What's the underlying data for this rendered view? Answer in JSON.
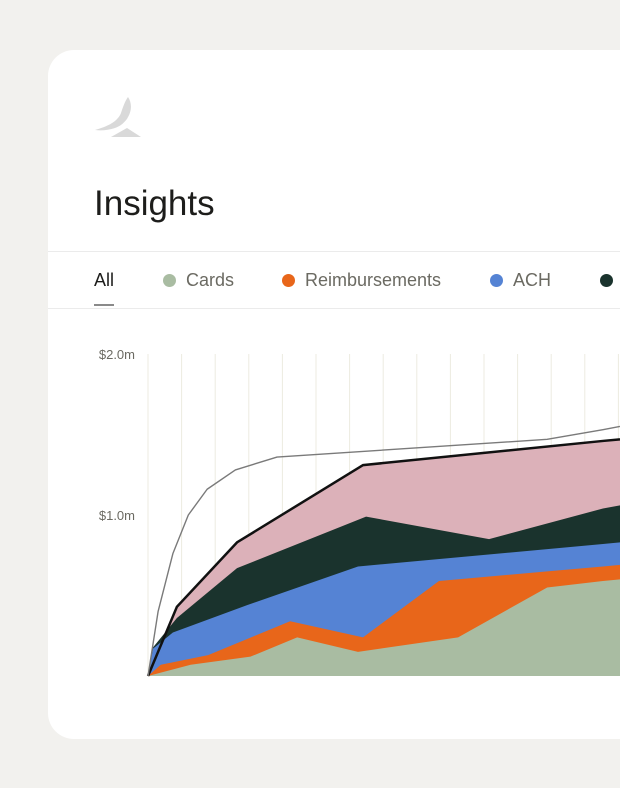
{
  "header": {
    "title": "Insights",
    "logo": "brand-logo"
  },
  "tabs": [
    {
      "label": "All",
      "active": true
    },
    {
      "label": "Cards",
      "color": "#a9bca2"
    },
    {
      "label": "Reimbursements",
      "color": "#e8661a"
    },
    {
      "label": "ACH",
      "color": "#5583d4"
    },
    {
      "label": "",
      "color": "#1a332d"
    }
  ],
  "chart_data": {
    "type": "area",
    "stacked": true,
    "title": "",
    "xlabel": "",
    "ylabel": "",
    "ylim": [
      0,
      2.0
    ],
    "y_ticks": [
      {
        "value": 2.0,
        "label": "$2.0m"
      },
      {
        "value": 1.0,
        "label": "$1.0m"
      }
    ],
    "grid": "vertical",
    "series_cumulative_top": [
      {
        "name": "Cards",
        "color": "#a9bca2",
        "points": [
          [
            0,
            0
          ],
          [
            1.27,
            0.07
          ],
          [
            3.05,
            0.12
          ],
          [
            4.44,
            0.24
          ],
          [
            6.25,
            0.15
          ],
          [
            9.23,
            0.24
          ],
          [
            11.88,
            0.55
          ],
          [
            13.54,
            0.59
          ],
          [
            14.05,
            0.6
          ]
        ]
      },
      {
        "name": "Reimbursements",
        "color": "#e8661a",
        "points": [
          [
            0,
            0
          ],
          [
            0.38,
            0.07
          ],
          [
            1.79,
            0.13
          ],
          [
            4.23,
            0.34
          ],
          [
            6.4,
            0.24
          ],
          [
            8.66,
            0.59
          ],
          [
            11.88,
            0.65
          ],
          [
            13.54,
            0.68
          ],
          [
            14.05,
            0.69
          ]
        ]
      },
      {
        "name": "ACH",
        "color": "#5583d4",
        "points": [
          [
            0,
            0
          ],
          [
            0.15,
            0.17
          ],
          [
            0.74,
            0.27
          ],
          [
            2.95,
            0.44
          ],
          [
            6.25,
            0.68
          ],
          [
            13.54,
            0.82
          ],
          [
            14.05,
            0.83
          ]
        ]
      },
      {
        "color": "#1a332d",
        "points": [
          [
            0,
            0
          ],
          [
            0.12,
            0.17
          ],
          [
            0.86,
            0.36
          ],
          [
            2.65,
            0.67
          ],
          [
            6.49,
            0.99
          ],
          [
            10.15,
            0.85
          ],
          [
            13.54,
            1.04
          ],
          [
            14.05,
            1.06
          ]
        ]
      },
      {
        "color": "#dcb1b9",
        "outline": "#111111",
        "points": [
          [
            0,
            0
          ],
          [
            0.86,
            0.43
          ],
          [
            2.65,
            0.83
          ],
          [
            6.4,
            1.31
          ],
          [
            13.54,
            1.46
          ],
          [
            14.05,
            1.47
          ]
        ]
      }
    ],
    "reference_line": {
      "color": "#7a7a7a",
      "points": [
        [
          0,
          0
        ],
        [
          0.3,
          0.4
        ],
        [
          0.74,
          0.76
        ],
        [
          1.2,
          1.0
        ],
        [
          1.76,
          1.16
        ],
        [
          2.6,
          1.28
        ],
        [
          3.84,
          1.36
        ],
        [
          11.88,
          1.47
        ],
        [
          13.54,
          1.53
        ],
        [
          14.05,
          1.55
        ]
      ]
    }
  }
}
